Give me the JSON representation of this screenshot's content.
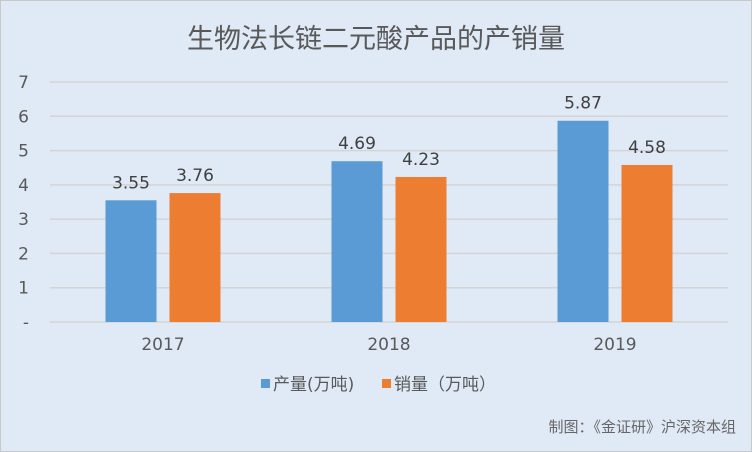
{
  "chart_data": {
    "type": "bar",
    "title": "生物法长链二元酸产品的产销量",
    "categories": [
      "2017",
      "2018",
      "2019"
    ],
    "series": [
      {
        "name": "产量(万吨)",
        "values": [
          3.55,
          4.69,
          5.87
        ],
        "color": "#5b9bd5"
      },
      {
        "name": "销量（万吨）",
        "values": [
          3.76,
          4.23,
          4.58
        ],
        "color": "#ed7d31"
      }
    ],
    "y_ticks": [
      "-",
      "1",
      "2",
      "3",
      "4",
      "5",
      "6",
      "7"
    ],
    "ylim": [
      0,
      7
    ],
    "grid": true,
    "legend_position": "bottom",
    "xlabel": "",
    "ylabel": ""
  },
  "source_note": "制图：《金证研》沪深资本组"
}
